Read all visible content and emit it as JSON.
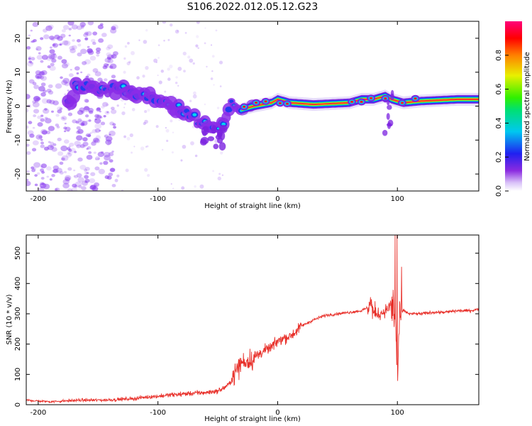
{
  "title": "S106.2022.012.05.12.G23",
  "colors": {
    "snr_line": "#e8302a",
    "track": "#ff3030",
    "speckle": "#8a3df0",
    "background": "#ffffff"
  },
  "chart_data": [
    {
      "type": "heatmap",
      "xlabel": "Height of straight line (km)",
      "ylabel": "Frequency (Hz)",
      "xlim": [
        -210,
        168
      ],
      "ylim": [
        -25,
        25
      ],
      "xticks": [
        -200,
        -100,
        0,
        100
      ],
      "yticks": [
        -20,
        -10,
        0,
        10,
        20
      ],
      "grid": false,
      "colorbar": {
        "label": "Normalized spectral amplitude",
        "range": [
          0,
          1
        ],
        "ticks": [
          "0.0",
          "0.2",
          "0.4",
          "0.6",
          "0.8"
        ],
        "colormap": "rainbow (white-purple-blue-cyan-green-yellow-red-magenta)"
      },
      "track": [
        {
          "x": -170,
          "y": 6
        },
        {
          "x": -150,
          "y": 5
        },
        {
          "x": -130,
          "y": 5
        },
        {
          "x": -110,
          "y": 3
        },
        {
          "x": -95,
          "y": 1
        },
        {
          "x": -80,
          "y": -2
        },
        {
          "x": -65,
          "y": -4
        },
        {
          "x": -55,
          "y": -7
        },
        {
          "x": -45,
          "y": -5
        },
        {
          "x": -38,
          "y": 0
        },
        {
          "x": -30,
          "y": -1
        },
        {
          "x": -20,
          "y": 0
        },
        {
          "x": -5,
          "y": 1
        },
        {
          "x": 0,
          "y": 2
        },
        {
          "x": 10,
          "y": 1
        },
        {
          "x": 30,
          "y": 0.5
        },
        {
          "x": 60,
          "y": 1
        },
        {
          "x": 70,
          "y": 2
        },
        {
          "x": 80,
          "y": 2
        },
        {
          "x": 90,
          "y": 3
        },
        {
          "x": 95,
          "y": 2
        },
        {
          "x": 105,
          "y": 1
        },
        {
          "x": 120,
          "y": 1.5
        },
        {
          "x": 150,
          "y": 2
        },
        {
          "x": 168,
          "y": 2
        }
      ]
    },
    {
      "type": "line",
      "xlabel": "Height of straight line (km)",
      "ylabel": "SNR (10 * v/v)",
      "xlim": [
        -210,
        168
      ],
      "ylim": [
        0,
        560
      ],
      "xticks": [
        -200,
        -100,
        0,
        100
      ],
      "yticks": [
        0,
        100,
        200,
        300,
        400,
        500
      ],
      "grid": false,
      "series": [
        {
          "x": [
            -210,
            -200,
            -190,
            -180,
            -170,
            -160,
            -150,
            -140,
            -130,
            -120,
            -110,
            -100,
            -90,
            -80,
            -70,
            -60,
            -50,
            -45,
            -40,
            -35,
            -30,
            -25,
            -20,
            -15,
            -10,
            -5,
            0,
            5,
            10,
            15,
            20,
            30,
            40,
            50,
            60,
            70,
            75,
            78,
            80,
            85,
            90,
            95,
            98,
            100,
            102,
            105,
            110,
            120,
            130,
            140,
            150,
            160,
            168
          ],
          "values": [
            15,
            12,
            10,
            12,
            14,
            15,
            15,
            16,
            18,
            20,
            25,
            28,
            32,
            35,
            38,
            40,
            45,
            55,
            70,
            110,
            140,
            145,
            150,
            170,
            180,
            190,
            210,
            220,
            225,
            240,
            260,
            280,
            295,
            300,
            305,
            310,
            320,
            340,
            300,
            300,
            310,
            330,
            280,
            100,
            300,
            310,
            300,
            300,
            305,
            305,
            310,
            310,
            315
          ]
        }
      ]
    }
  ]
}
